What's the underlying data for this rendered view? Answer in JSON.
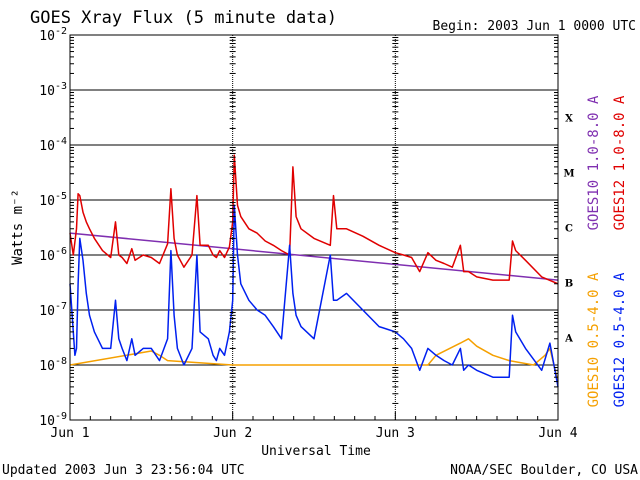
{
  "header": {
    "title": "GOES Xray Flux (5 minute data)",
    "begin": "Begin:  2003 Jun 1 0000 UTC"
  },
  "footer": {
    "updated": "Updated 2003 Jun  3 23:56:04 UTC",
    "credit": "NOAA/SEC Boulder, CO USA"
  },
  "chart_data": {
    "type": "line",
    "title": "GOES Xray Flux (5 minute data)",
    "xlabel": "Universal Time",
    "ylabel": "Watts m⁻²",
    "yscale": "log",
    "ylim": [
      1e-09,
      0.01
    ],
    "xlim": [
      0,
      3
    ],
    "x_tick_labels": [
      "Jun 1",
      "Jun 2",
      "Jun 3",
      "Jun 4"
    ],
    "y_tick_labels": [
      {
        "base": "10",
        "exp": "-9",
        "value": 1e-09
      },
      {
        "base": "10",
        "exp": "-8",
        "value": 1e-08
      },
      {
        "base": "10",
        "exp": "-7",
        "value": 1e-07
      },
      {
        "base": "10",
        "exp": "-6",
        "value": 1e-06
      },
      {
        "base": "10",
        "exp": "-5",
        "value": 1e-05
      },
      {
        "base": "10",
        "exp": "-4",
        "value": 0.0001
      },
      {
        "base": "10",
        "exp": "-3",
        "value": 0.001
      },
      {
        "base": "10",
        "exp": "-2",
        "value": 0.01
      }
    ],
    "flare_classes": [
      {
        "label": "A",
        "value": 1e-08
      },
      {
        "label": "B",
        "value": 1e-07
      },
      {
        "label": "C",
        "value": 1e-06
      },
      {
        "label": "M",
        "value": 1e-05
      },
      {
        "label": "X",
        "value": 0.0001
      }
    ],
    "grid_lines": [
      1e-08,
      1e-07,
      1e-06,
      1e-05,
      0.0001,
      0.001
    ],
    "series": [
      {
        "name": "GOES10 1.0-8.0 A",
        "color": "#7f2fb0",
        "x": [
          0,
          3
        ],
        "y": [
          2.5e-06,
          3.5e-07
        ],
        "hidden_behind": "GOES12 1.0-8.0 A"
      },
      {
        "name": "GOES12 1.0-8.0 A",
        "color": "#e00000",
        "x": [
          0.0,
          0.02,
          0.04,
          0.05,
          0.06,
          0.08,
          0.1,
          0.12,
          0.15,
          0.2,
          0.25,
          0.28,
          0.3,
          0.32,
          0.35,
          0.38,
          0.4,
          0.45,
          0.5,
          0.55,
          0.6,
          0.62,
          0.64,
          0.66,
          0.7,
          0.75,
          0.78,
          0.8,
          0.85,
          0.88,
          0.9,
          0.92,
          0.95,
          0.98,
          1.0,
          1.01,
          1.03,
          1.05,
          1.1,
          1.15,
          1.2,
          1.25,
          1.3,
          1.35,
          1.37,
          1.39,
          1.42,
          1.5,
          1.6,
          1.62,
          1.64,
          1.7,
          1.8,
          1.9,
          2.0,
          2.05,
          2.1,
          2.15,
          2.2,
          2.25,
          2.3,
          2.35,
          2.4,
          2.42,
          2.45,
          2.5,
          2.6,
          2.7,
          2.72,
          2.74,
          2.8,
          2.9,
          3.0
        ],
        "y": [
          2.5e-06,
          1e-06,
          3e-06,
          1.3e-05,
          1.2e-05,
          6e-06,
          4e-06,
          3e-06,
          2e-06,
          1.2e-06,
          9e-07,
          4e-06,
          1e-06,
          9e-07,
          7e-07,
          1.3e-06,
          8e-07,
          1e-06,
          9e-07,
          7e-07,
          1.6e-06,
          1.6e-05,
          2e-06,
          1e-06,
          6e-07,
          1e-06,
          1.2e-05,
          1.5e-06,
          1.5e-06,
          1e-06,
          9e-07,
          1.2e-06,
          9e-07,
          1.4e-06,
          4e-06,
          6.5e-05,
          8e-06,
          5e-06,
          3e-06,
          2.5e-06,
          1.8e-06,
          1.5e-06,
          1.2e-06,
          1e-06,
          4e-05,
          5e-06,
          3e-06,
          2e-06,
          1.5e-06,
          1.2e-05,
          3e-06,
          3e-06,
          2.2e-06,
          1.5e-06,
          1.1e-06,
          1e-06,
          9e-07,
          5e-07,
          1.1e-06,
          8e-07,
          7e-07,
          6e-07,
          1.5e-06,
          5e-07,
          5e-07,
          4e-07,
          3.5e-07,
          3.5e-07,
          1.8e-06,
          1.2e-06,
          8e-07,
          4e-07,
          3e-07
        ]
      },
      {
        "name": "GOES10 0.5-4.0 A",
        "color": "#f5a000",
        "x": [
          0,
          0.5,
          0.55,
          0.6,
          1.0,
          2.2,
          2.25,
          2.4,
          2.45,
          2.5,
          2.6,
          2.7,
          2.85,
          2.92,
          2.95,
          3.0
        ],
        "y": [
          1e-08,
          1.8e-08,
          1.5e-08,
          1.2e-08,
          1e-08,
          1e-08,
          1.5e-08,
          2.5e-08,
          3e-08,
          2.2e-08,
          1.5e-08,
          1.2e-08,
          1e-08,
          1.5e-08,
          2e-08,
          5e-09
        ],
        "hidden_behind": "GOES12 0.5-4.0 A"
      },
      {
        "name": "GOES12 0.5-4.0 A",
        "color": "#0020f0",
        "x": [
          0.0,
          0.02,
          0.03,
          0.04,
          0.05,
          0.06,
          0.08,
          0.1,
          0.12,
          0.15,
          0.2,
          0.25,
          0.28,
          0.3,
          0.32,
          0.35,
          0.38,
          0.4,
          0.45,
          0.5,
          0.55,
          0.6,
          0.62,
          0.64,
          0.66,
          0.7,
          0.75,
          0.78,
          0.8,
          0.85,
          0.88,
          0.9,
          0.92,
          0.95,
          0.98,
          1.0,
          1.01,
          1.03,
          1.05,
          1.1,
          1.15,
          1.2,
          1.25,
          1.3,
          1.35,
          1.37,
          1.39,
          1.42,
          1.5,
          1.6,
          1.62,
          1.64,
          1.7,
          1.8,
          1.9,
          2.0,
          2.05,
          2.1,
          2.15,
          2.2,
          2.25,
          2.3,
          2.35,
          2.4,
          2.42,
          2.45,
          2.5,
          2.6,
          2.7,
          2.72,
          2.74,
          2.8,
          2.9,
          2.95,
          3.0
        ],
        "y": [
          3e-07,
          4e-08,
          1.5e-08,
          2e-08,
          3e-07,
          2e-06,
          8e-07,
          2e-07,
          8e-08,
          4e-08,
          2e-08,
          2e-08,
          1.5e-07,
          3e-08,
          2e-08,
          1.2e-08,
          3e-08,
          1.5e-08,
          2e-08,
          2e-08,
          1.2e-08,
          3e-08,
          1.2e-06,
          8e-08,
          2e-08,
          1e-08,
          2e-08,
          1e-06,
          4e-08,
          3e-08,
          1.5e-08,
          1.2e-08,
          2e-08,
          1.5e-08,
          4e-08,
          1.5e-07,
          8e-06,
          1e-06,
          3e-07,
          1.5e-07,
          1e-07,
          8e-08,
          5e-08,
          3e-08,
          1.5e-06,
          2e-07,
          8e-08,
          5e-08,
          3e-08,
          1e-06,
          1.5e-07,
          1.5e-07,
          2e-07,
          1e-07,
          5e-08,
          4e-08,
          3e-08,
          2e-08,
          8e-09,
          2e-08,
          1.5e-08,
          1.2e-08,
          1e-08,
          2e-08,
          8e-09,
          1e-08,
          8e-09,
          6e-09,
          6e-09,
          8e-08,
          4e-08,
          2e-08,
          8e-09,
          2.5e-08,
          4e-09
        ]
      }
    ]
  }
}
